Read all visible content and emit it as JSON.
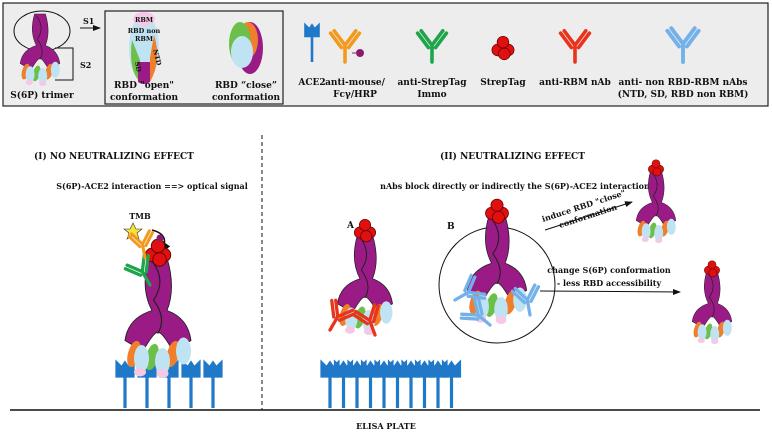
{
  "legend": {
    "trimer_label": "S(6P) trimer",
    "s1_label": "S1",
    "s2_label": "S2",
    "rbd_parts": {
      "rbm": "RBM",
      "rbd_non": "RBD non",
      "rbm2": "RBM",
      "sd": "SD",
      "ntd": "NTD"
    },
    "rbd_open": [
      "RBD \"open\"",
      "conformation"
    ],
    "rbd_close": [
      "RBD “close”",
      "conformation"
    ],
    "ace2": "ACE2",
    "anti_mouse": [
      "anti-mouse/",
      "Fcγ/HRP"
    ],
    "anti_streptag": [
      "anti-StrepTag",
      "Immo"
    ],
    "streptag": "StrepTag",
    "anti_rbm": "anti-RBM nAb",
    "anti_non_rbd": [
      "anti- non RBD-RBM nAbs",
      "(NTD, SD, RBD non RBM)"
    ]
  },
  "panel_left": {
    "title": "(I) NO NEUTRALIZING EFFECT",
    "subtitle": "S(6P)-ACE2 interaction ==> optical signal",
    "tmb": "TMB"
  },
  "panel_right": {
    "title": "(II) NEUTRALIZING EFFECT",
    "subtitle": "nAbs block directly or indirectly the S(6P)-ACE2 interaction",
    "label_a": "A",
    "label_b": "B",
    "arrow1": [
      "induce RBD \"close\"",
      "conformation"
    ],
    "arrow2": [
      "change S(6P) conformation",
      "- less RBD accessibility"
    ]
  },
  "plate_label": "ELISA PLATE",
  "colors": {
    "spike": "#9b1b86",
    "ace2": "#1f78c8",
    "anti_mouse": "#f39a1e",
    "hrp": "#8a1a6e",
    "anti_streptag": "#1ea54a",
    "streptag": "#e01010",
    "anti_rbm": "#e8341c",
    "anti_non_rbd": "#74b1ea",
    "rbd": "#bfe3f2",
    "sd": "#6cc04a",
    "ntd": "#f07e2a",
    "rbm": "#f5c9e6",
    "legend_bg": "#ededed"
  }
}
